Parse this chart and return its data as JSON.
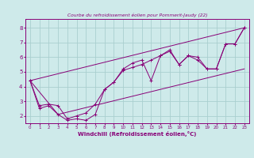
{
  "title": "Courbe du refroidissement éolien pour Pommerit-Jaudy (22)",
  "xlabel": "Windchill (Refroidissement éolien,°C)",
  "xlim": [
    -0.5,
    23.5
  ],
  "ylim": [
    1.5,
    8.6
  ],
  "yticks": [
    2,
    3,
    4,
    5,
    6,
    7,
    8
  ],
  "xticks": [
    0,
    1,
    2,
    3,
    4,
    5,
    6,
    7,
    8,
    9,
    10,
    11,
    12,
    13,
    14,
    15,
    16,
    17,
    18,
    19,
    20,
    21,
    22,
    23
  ],
  "bg_color": "#ceeaea",
  "line_color": "#880077",
  "grid_color": "#aacfcf",
  "lines": [
    {
      "x": [
        0,
        1,
        2,
        3,
        4,
        5,
        6,
        7,
        8,
        9,
        10,
        11,
        12,
        13,
        14,
        15,
        16,
        17,
        18,
        19,
        20,
        21,
        22,
        23
      ],
      "y": [
        4.4,
        2.5,
        2.7,
        2.1,
        1.7,
        1.8,
        1.7,
        2.1,
        3.8,
        4.3,
        5.2,
        5.6,
        5.8,
        4.4,
        6.1,
        6.5,
        5.5,
        6.1,
        6.0,
        5.2,
        5.2,
        6.9,
        6.9,
        8.0
      ],
      "marker": true
    },
    {
      "x": [
        0,
        1,
        2,
        3,
        4,
        5,
        6,
        7,
        8,
        9,
        10,
        11,
        12,
        13,
        14,
        15,
        16,
        17,
        18,
        19,
        20,
        21,
        22,
        23
      ],
      "y": [
        4.4,
        2.7,
        2.8,
        2.7,
        1.8,
        2.0,
        2.2,
        2.8,
        3.8,
        4.3,
        5.1,
        5.3,
        5.5,
        5.8,
        6.1,
        6.4,
        5.5,
        6.1,
        5.8,
        5.2,
        5.2,
        6.9,
        6.9,
        8.0
      ],
      "marker": true
    },
    {
      "x": [
        0,
        23
      ],
      "y": [
        4.4,
        8.0
      ],
      "marker": false
    },
    {
      "x": [
        0,
        3,
        23
      ],
      "y": [
        4.4,
        2.1,
        5.2
      ],
      "marker": false
    }
  ]
}
